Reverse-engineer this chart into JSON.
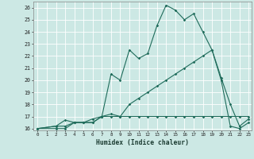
{
  "xlabel": "Humidex (Indice chaleur)",
  "bg_color": "#cce8e4",
  "line_color": "#1e6b5a",
  "grid_color": "#ffffff",
  "xlim": [
    -0.5,
    23.3
  ],
  "ylim": [
    15.85,
    26.5
  ],
  "yticks": [
    16,
    17,
    18,
    19,
    20,
    21,
    22,
    23,
    24,
    25,
    26
  ],
  "xticks": [
    0,
    1,
    2,
    3,
    4,
    5,
    6,
    7,
    8,
    9,
    10,
    11,
    12,
    13,
    14,
    15,
    16,
    17,
    18,
    19,
    20,
    21,
    22,
    23
  ],
  "line1_x": [
    0,
    2,
    3,
    4,
    5,
    6,
    7,
    8,
    9,
    10,
    11,
    12,
    13,
    14,
    15,
    16,
    17,
    18,
    19,
    20,
    21,
    22,
    23
  ],
  "line1_y": [
    16,
    16.2,
    16.7,
    16.5,
    16.5,
    16.5,
    17.0,
    20.5,
    20.0,
    22.5,
    21.8,
    22.2,
    24.5,
    26.2,
    25.8,
    25.0,
    25.5,
    24.0,
    22.5,
    20.2,
    18.0,
    16.2,
    16.8
  ],
  "line2_x": [
    0,
    2,
    3,
    4,
    5,
    6,
    7,
    8,
    9,
    10,
    11,
    12,
    13,
    14,
    15,
    16,
    17,
    18,
    19,
    20,
    21,
    22,
    23
  ],
  "line2_y": [
    16,
    16.0,
    16.0,
    16.5,
    16.5,
    16.8,
    17.0,
    17.0,
    17.0,
    17.0,
    17.0,
    17.0,
    17.0,
    17.0,
    17.0,
    17.0,
    17.0,
    17.0,
    17.0,
    17.0,
    17.0,
    17.0,
    17.0
  ],
  "line3_x": [
    0,
    2,
    3,
    4,
    5,
    6,
    7,
    8,
    9,
    10,
    11,
    12,
    13,
    14,
    15,
    16,
    17,
    18,
    19,
    20,
    21,
    22,
    23
  ],
  "line3_y": [
    16,
    16.2,
    16.2,
    16.5,
    16.5,
    16.5,
    17.0,
    17.2,
    17.0,
    18.0,
    18.5,
    19.0,
    19.5,
    20.0,
    20.5,
    21.0,
    21.5,
    22.0,
    22.5,
    20.0,
    16.2,
    16.0,
    16.5
  ]
}
